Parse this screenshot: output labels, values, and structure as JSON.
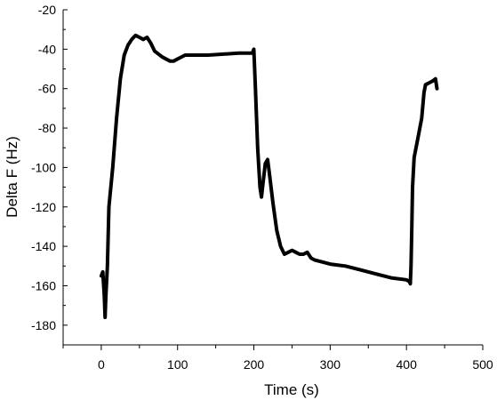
{
  "chart_data": {
    "type": "line",
    "xlabel": "Time (s)",
    "ylabel": "Delta F (Hz)",
    "xlim": [
      -50,
      500
    ],
    "ylim": [
      -190,
      -20
    ],
    "xticks": [
      0,
      100,
      200,
      300,
      400,
      500
    ],
    "yticks": [
      -20,
      -40,
      -60,
      -80,
      -100,
      -120,
      -140,
      -160,
      -180
    ],
    "grid": false,
    "series": [
      {
        "color": "#000000",
        "x": [
          0,
          2,
          4,
          5,
          6,
          8,
          10,
          15,
          20,
          25,
          30,
          35,
          40,
          45,
          50,
          55,
          60,
          65,
          70,
          80,
          90,
          95,
          100,
          110,
          120,
          140,
          160,
          180,
          198,
          200,
          202,
          205,
          208,
          210,
          212,
          215,
          218,
          220,
          225,
          230,
          235,
          240,
          245,
          250,
          255,
          260,
          265,
          270,
          275,
          280,
          300,
          320,
          340,
          360,
          380,
          400,
          404,
          405,
          406,
          407,
          408,
          410,
          415,
          420,
          423,
          425,
          430,
          435,
          438,
          440
        ],
        "y": [
          -155,
          -153,
          -165,
          -176,
          -165,
          -150,
          -120,
          -100,
          -75,
          -55,
          -43,
          -38,
          -35,
          -33,
          -34,
          -35,
          -34,
          -37,
          -41,
          -44,
          -46,
          -46,
          -45,
          -43,
          -43,
          -43,
          -42.5,
          -42,
          -42,
          -40,
          -60,
          -90,
          -110,
          -115,
          -108,
          -98,
          -96,
          -102,
          -118,
          -132,
          -140,
          -144,
          -143,
          -142,
          -143,
          -144,
          -144,
          -143,
          -146,
          -147,
          -149,
          -150,
          -152,
          -154,
          -156,
          -157,
          -158,
          -159,
          -150,
          -130,
          -110,
          -95,
          -85,
          -75,
          -62,
          -58,
          -57,
          -56,
          -55,
          -60
        ]
      }
    ]
  }
}
